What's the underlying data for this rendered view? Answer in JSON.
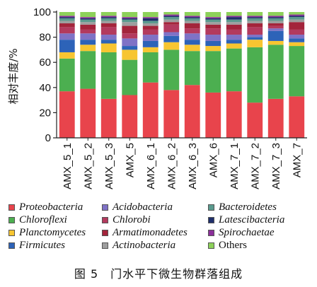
{
  "chart_data": {
    "type": "bar",
    "stacked": true,
    "ylabel": "相对丰度/%",
    "ylim": [
      0,
      100
    ],
    "yticks": [
      0,
      20,
      40,
      60,
      80,
      100
    ],
    "grid": false,
    "categories": [
      "AMX_5_1",
      "AMX_5_2",
      "AMX_5_3",
      "AMX_5",
      "AMX_6_1",
      "AMX_6_2",
      "AMX_6_3",
      "AMX_6",
      "AMX_7_1",
      "AMX_7_2",
      "AMX_7_3",
      "AMX_7"
    ],
    "series": [
      {
        "name": "Proteobacteria",
        "color": "#e8444c",
        "italic": true,
        "values": [
          37,
          39,
          31,
          34,
          44,
          38,
          42,
          36,
          37,
          28,
          31,
          33
        ]
      },
      {
        "name": "Chloroflexi",
        "color": "#4caf50",
        "italic": true,
        "values": [
          26,
          30,
          37,
          28,
          24,
          32,
          27,
          33,
          34,
          44,
          43,
          40
        ]
      },
      {
        "name": "Planctomycetes",
        "color": "#f7c531",
        "italic": true,
        "values": [
          5,
          5,
          7,
          8,
          4,
          6,
          5,
          4,
          4,
          6,
          3,
          3
        ]
      },
      {
        "name": "Firmicutes",
        "color": "#2d63b8",
        "italic": true,
        "values": [
          10,
          4,
          3,
          3,
          5,
          5,
          4,
          4,
          3,
          2,
          8,
          3
        ]
      },
      {
        "name": "Acidobacteria",
        "color": "#7f72c6",
        "italic": true,
        "values": [
          5,
          5,
          4,
          6,
          5,
          3,
          5,
          5,
          4,
          2,
          2,
          3
        ]
      },
      {
        "name": "Chlorobi",
        "color": "#b33a5e",
        "italic": true,
        "values": [
          5,
          3,
          6,
          4,
          4,
          6,
          4,
          5,
          4,
          6,
          2,
          4
        ]
      },
      {
        "name": "Armatimonadetes",
        "color": "#a3243b",
        "italic": true,
        "values": [
          3,
          4,
          3,
          6,
          3,
          2,
          4,
          3,
          4,
          3,
          2,
          6
        ]
      },
      {
        "name": "Actinobacteria",
        "color": "#9e9e9e",
        "italic": true,
        "values": [
          2,
          2,
          2,
          3,
          2,
          2,
          2,
          2,
          2,
          2,
          2,
          2
        ]
      },
      {
        "name": "Bacteroidetes",
        "color": "#5a9a8e",
        "italic": true,
        "values": [
          2,
          2,
          2,
          2,
          2,
          2,
          2,
          2,
          2,
          2,
          2,
          2
        ]
      },
      {
        "name": "Latescibacteria",
        "color": "#1f2f6b",
        "italic": true,
        "values": [
          1,
          1,
          1,
          1,
          2,
          1,
          1,
          1,
          2,
          1,
          1,
          1
        ]
      },
      {
        "name": "Spirochaetae",
        "color": "#8b2f9a",
        "italic": true,
        "values": [
          1,
          1,
          1,
          1,
          1,
          1,
          1,
          1,
          1,
          1,
          1,
          1
        ]
      },
      {
        "name": "Others",
        "color": "#8dd15a",
        "italic": false,
        "values": [
          3,
          4,
          3,
          4,
          4,
          2,
          3,
          4,
          3,
          3,
          3,
          2
        ]
      }
    ]
  },
  "legend": {
    "columns": [
      [
        "Proteobacteria",
        "Chloroflexi",
        "Planctomycetes",
        "Firmicutes"
      ],
      [
        "Acidobacteria",
        "Chlorobi",
        "Armatimonadetes",
        "Actinobacteria"
      ],
      [
        "Bacteroidetes",
        "Latescibacteria",
        "Spirochaetae",
        "Others"
      ]
    ]
  },
  "caption": "图 5　门水平下微生物群落组成"
}
